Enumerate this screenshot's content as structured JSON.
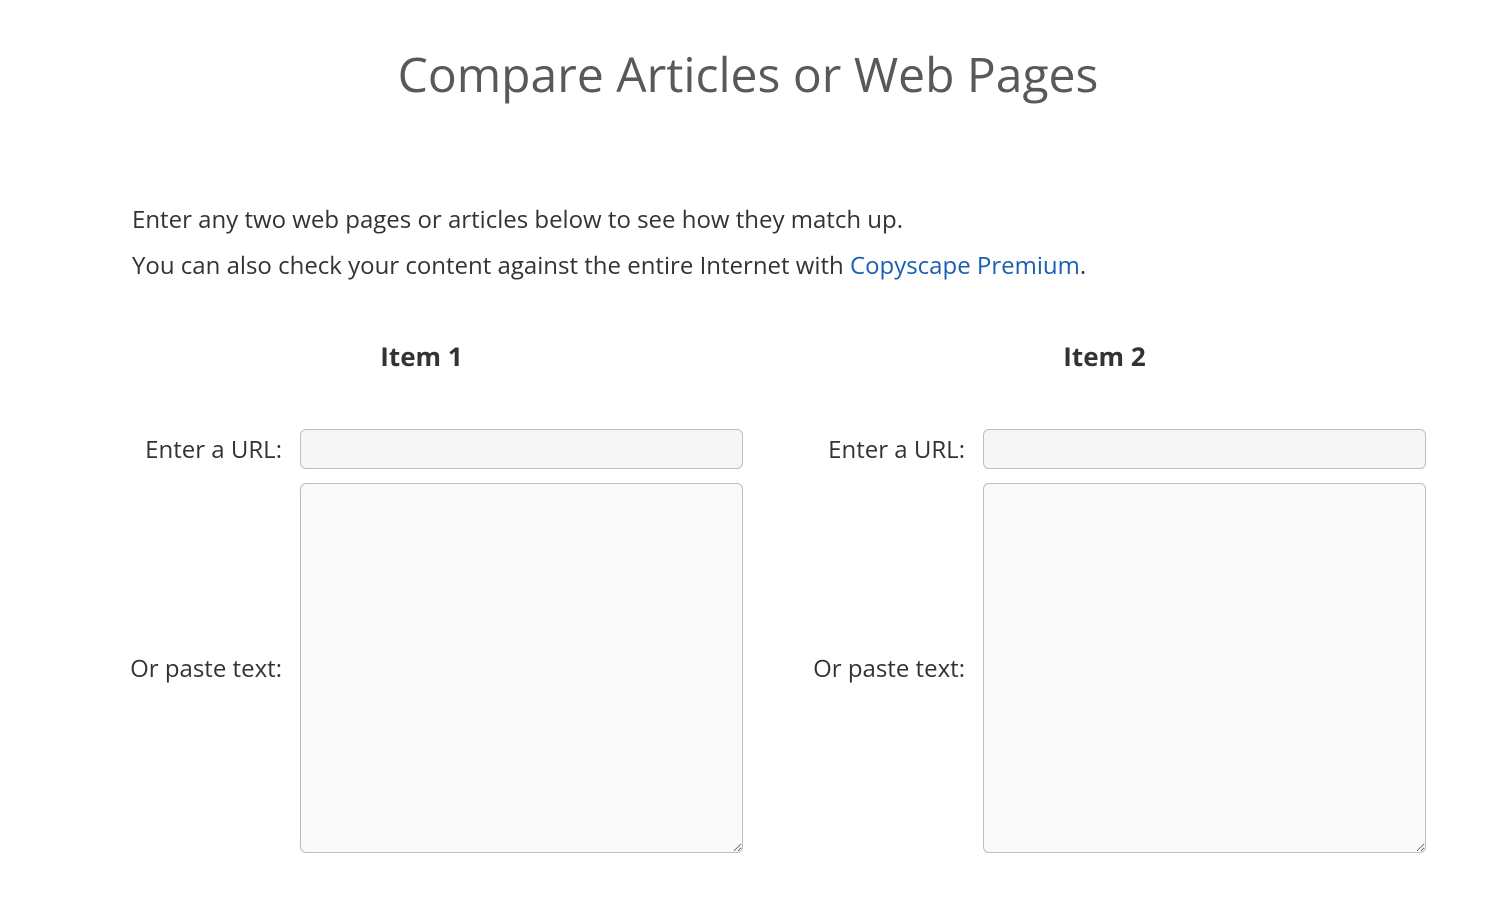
{
  "page": {
    "title": "Compare Articles or Web Pages"
  },
  "intro": {
    "line1": "Enter any two web pages or articles below to see how they match up.",
    "line2_prefix": "You can also check your content against the entire Internet with ",
    "link_text": "Copyscape Premium",
    "line2_suffix": "."
  },
  "labels": {
    "url": "Enter a URL:",
    "text": "Or paste text:"
  },
  "items": [
    {
      "heading": "Item 1",
      "url_value": "",
      "text_value": ""
    },
    {
      "heading": "Item 2",
      "url_value": "",
      "text_value": ""
    }
  ],
  "colors": {
    "title": "#595959",
    "text": "#333333",
    "link": "#1a5fb4",
    "input_border": "#bfbfbf",
    "input_bg": "#f6f6f6",
    "textarea_bg": "#fafafa",
    "page_bg": "#ffffff"
  },
  "typography": {
    "title_fontsize": 48,
    "intro_fontsize": 24,
    "heading_fontsize": 26,
    "label_fontsize": 24
  }
}
